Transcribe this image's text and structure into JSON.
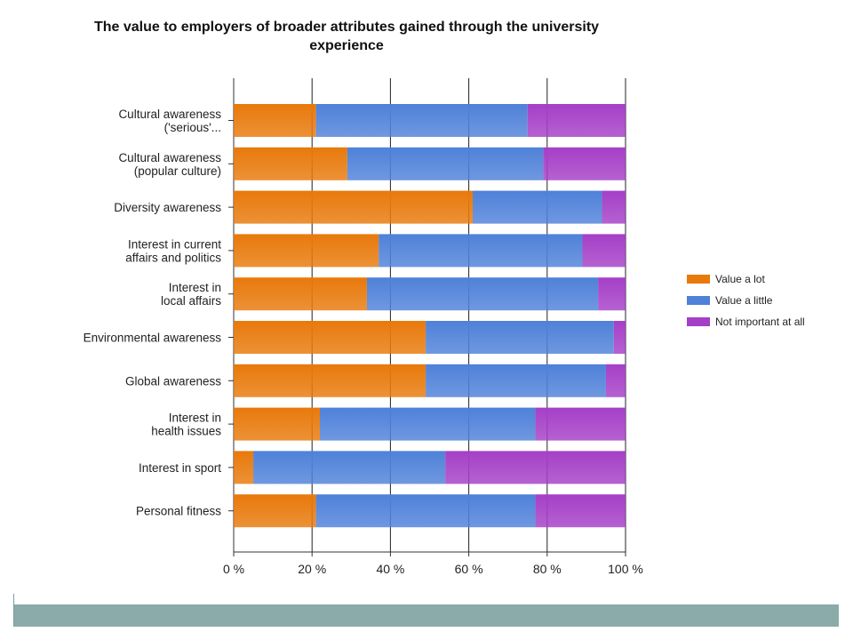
{
  "chart_data": {
    "type": "bar",
    "orientation": "horizontal",
    "stacked": true,
    "title": "The value to employers of broader attributes gained through the university\nexperience",
    "categories": [
      "Cultural awareness\n('serious'...",
      "Cultural awareness\n(popular culture)",
      "Diversity awareness",
      "Interest in current\naffairs and politics",
      "Interest in\nlocal affairs",
      "Environmental awareness",
      "Global awareness",
      "Interest in\nhealth issues",
      "Interest in sport",
      "Personal fitness"
    ],
    "series": [
      {
        "name": "Value a lot",
        "color": "#e8790b",
        "values": [
          21,
          29,
          61,
          37,
          34,
          49,
          49,
          22,
          5,
          21
        ]
      },
      {
        "name": "Value a little",
        "color": "#4f81d9",
        "values": [
          54,
          50,
          33,
          52,
          59,
          48,
          46,
          55,
          49,
          56
        ]
      },
      {
        "name": "Not important at all",
        "color": "#a53fc7",
        "values": [
          25,
          21,
          6,
          11,
          7,
          3,
          5,
          23,
          46,
          23
        ]
      }
    ],
    "xlim": [
      0,
      100
    ],
    "xticks": [
      "0 %",
      "20 %",
      "40 %",
      "60 %",
      "80 %",
      "100 %"
    ],
    "grid": "vertical",
    "legend": "right"
  }
}
